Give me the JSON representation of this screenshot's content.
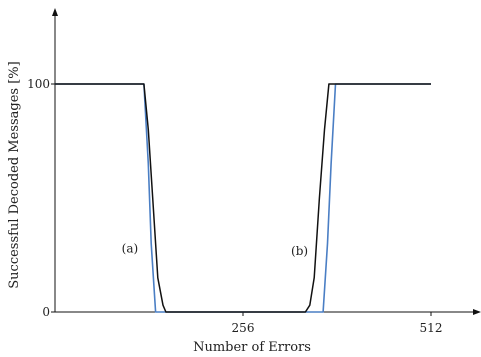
{
  "chart_data": {
    "type": "line",
    "xlabel": "Number of Errors",
    "ylabel": "Successful Decoded Messages [%]",
    "x_ticks": [
      {
        "value": 256,
        "label": "256"
      },
      {
        "value": 512,
        "label": "512"
      }
    ],
    "y_ticks": [
      {
        "value": 0,
        "label": "0"
      },
      {
        "value": 100,
        "label": "100"
      }
    ],
    "xlim": [
      0,
      600
    ],
    "ylim": [
      0,
      130
    ],
    "grid": false,
    "series": [
      {
        "color": "#4a7ec4",
        "x": [
          0,
          121,
          127,
          131,
          137,
          365,
          371,
          376,
          382,
          512
        ],
        "y": [
          100,
          100,
          65,
          30,
          0,
          0,
          30,
          65,
          100,
          100
        ]
      },
      {
        "color": "#111111",
        "x": [
          0,
          121,
          127,
          133,
          140,
          147,
          151,
          300,
          341,
          347,
          353,
          360,
          367,
          373,
          512
        ],
        "y": [
          100,
          100,
          80,
          50,
          15,
          3,
          0,
          0,
          0,
          3,
          15,
          50,
          80,
          100,
          100
        ]
      }
    ],
    "annotations": [
      {
        "text": "(a)",
        "x": 102,
        "y": 26
      },
      {
        "text": "(b)",
        "x": 333,
        "y": 25
      }
    ]
  }
}
